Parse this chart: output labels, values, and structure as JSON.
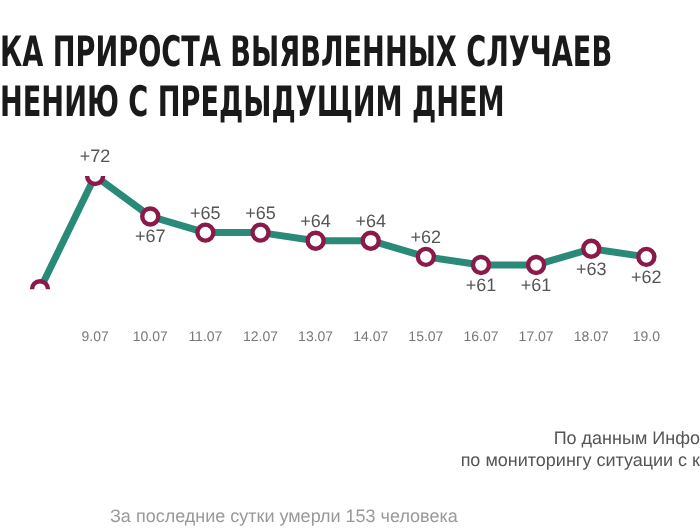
{
  "chart_data": {
    "type": "line",
    "title": "КА ПРИРОСТА ВЫЯВЛЕННЫХ СЛУЧАЕВ\nНЕНИЮ С ПРЕДЫДУЩИМ ДНЕМ",
    "categories": [
      null,
      "9.07",
      "10.07",
      "11.07",
      "12.07",
      "13.07",
      "14.07",
      "15.07",
      "16.07",
      "17.07",
      "18.07",
      "19.0"
    ],
    "series": [
      {
        "color": "#2a8a78",
        "values": [
          58,
          72,
          67,
          65,
          65,
          64,
          64,
          62,
          61,
          61,
          63,
          62
        ],
        "value_labels": [
          null,
          "+72",
          "+67",
          "+65",
          "+65",
          "+64",
          "+64",
          "+62",
          "+61",
          "+61",
          "+63",
          "+62"
        ]
      }
    ],
    "marker": "circle",
    "grid": false,
    "legend": false,
    "annotations": [
      "По данным Инфо\nпо мониторингу ситуации с к",
      "За последние сутки умерли 153 человека"
    ]
  }
}
